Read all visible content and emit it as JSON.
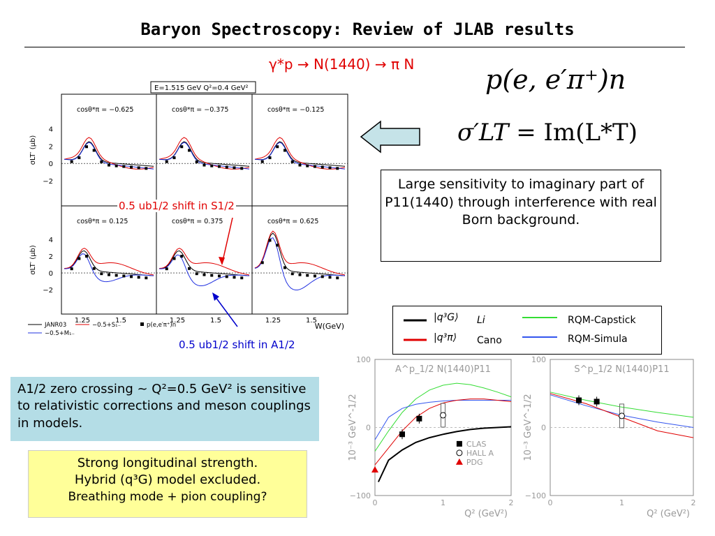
{
  "slide": {
    "title": "Baryon Spectroscopy: Review of JLAB results",
    "reaction": "γ*p → N(1440) → π N",
    "formula1": "p(e, e′π⁺)n",
    "formula2_lhs": "σ′LT",
    "formula2_rhs": "= Im(L*T)",
    "sensitivity_text": "Large sensitivity to imaginary part of P11(1440) through interference with real Born background.",
    "zero_crossing_text": "A1/2 zero crossing ~ Q²=0.5 GeV² is sensitive to relativistic corrections and meson couplings in models.",
    "strong_line1": "Strong longitudinal strength.",
    "strong_line2": "Hybrid (q³G) model excluded.",
    "strong_line3": "Breathing mode + pion coupling?",
    "shift_s": "0.5 ub1/2 shift in S1/2",
    "shift_a": "0.5 ub1/2 shift in A1/2"
  },
  "legend": {
    "li": "Li",
    "cano": "Cano",
    "q3g": "|q³G⟩",
    "q3pi": "|q³π⟩",
    "capstick": "RQM-Capstick",
    "simula": "RQM-Simula"
  },
  "left_plot": {
    "header": "E=1.515 GeV  Q²=0.4 GeV²",
    "ylabel": "σLT′ (μb)",
    "xlabel": "W(GeV)",
    "top_panels": [
      "cosθ*π = −0.625",
      "cosθ*π = −0.375",
      "cosθ*π = −0.125"
    ],
    "bottom_panels": [
      "cosθ*π = 0.125",
      "cosθ*π = 0.375",
      "cosθ*π = 0.625"
    ],
    "yticks": [
      "4",
      "2",
      "0",
      "−2"
    ],
    "xticks": [
      "1.25",
      "1.5"
    ],
    "legend_janr": "JANR03",
    "legend_born_s": "−0.5+S₁₋",
    "legend_born_m": "−0.5+M₁₋",
    "legend_data": "p(e,e′π⁺)n",
    "colors": {
      "black": "#000000",
      "red": "#e00000",
      "blue": "#2030e0"
    }
  },
  "chart_data": [
    {
      "type": "line",
      "title": "A^p_1/2  N(1440)P11",
      "xlabel": "Q² (GeV²)",
      "ylabel": "10⁻³ GeV^-1/2",
      "xlim": [
        0,
        2
      ],
      "ylim": [
        -100,
        100
      ],
      "xticks": [
        "0",
        "1",
        "2"
      ],
      "yticks": [
        "100",
        "0",
        "−100"
      ],
      "series": [
        {
          "name": "Li",
          "color": "#000000",
          "x": [
            0.05,
            0.2,
            0.4,
            0.6,
            0.8,
            1.0,
            1.2,
            1.4,
            1.6,
            1.8,
            2.0
          ],
          "y": [
            -80,
            -48,
            -33,
            -22,
            -15,
            -10,
            -6,
            -3,
            -1,
            0,
            1
          ]
        },
        {
          "name": "RQM-Capstick",
          "color": "#33dd33",
          "x": [
            0,
            0.2,
            0.4,
            0.6,
            0.8,
            1.0,
            1.2,
            1.4,
            1.6,
            1.8,
            2.0
          ],
          "y": [
            -35,
            -5,
            22,
            42,
            55,
            62,
            65,
            63,
            58,
            52,
            45
          ]
        },
        {
          "name": "RQM-Simula",
          "color": "#3355ee",
          "x": [
            0,
            0.2,
            0.4,
            0.6,
            0.8,
            1.0,
            1.2,
            1.4,
            1.6,
            1.8,
            2.0
          ],
          "y": [
            -18,
            15,
            28,
            34,
            37,
            39,
            40,
            40,
            40,
            40,
            40
          ]
        },
        {
          "name": "Cano",
          "color": "#e00000",
          "x": [
            0,
            0.2,
            0.4,
            0.6,
            0.8,
            1.0,
            1.2,
            1.4,
            1.6,
            1.8,
            2.0
          ],
          "y": [
            -55,
            -30,
            -5,
            15,
            28,
            36,
            40,
            42,
            42,
            40,
            38
          ]
        }
      ],
      "points": [
        {
          "name": "CLAS",
          "marker": "square",
          "x": [
            0.4,
            0.65
          ],
          "y": [
            -10,
            13
          ]
        },
        {
          "name": "HALL A",
          "marker": "circle",
          "x": [
            1.0
          ],
          "y": [
            18
          ]
        },
        {
          "name": "PDG",
          "marker": "triangle",
          "x": [
            0.0
          ],
          "y": [
            -62
          ]
        }
      ]
    },
    {
      "type": "line",
      "title": "S^p_1/2  N(1440)P11",
      "xlabel": "Q² (GeV²)",
      "ylabel": "10⁻³ GeV^-1/2",
      "xlim": [
        0,
        2
      ],
      "ylim": [
        -100,
        100
      ],
      "xticks": [
        "0",
        "1",
        "2"
      ],
      "yticks": [
        "100",
        "0",
        "−100"
      ],
      "series": [
        {
          "name": "RQM-Capstick",
          "color": "#33dd33",
          "x": [
            0,
            0.5,
            1.0,
            1.5,
            2.0
          ],
          "y": [
            52,
            40,
            30,
            22,
            15
          ]
        },
        {
          "name": "RQM-Simula",
          "color": "#3355ee",
          "x": [
            0,
            0.5,
            1.0,
            1.5,
            2.0
          ],
          "y": [
            48,
            32,
            18,
            8,
            0
          ]
        },
        {
          "name": "Cano",
          "color": "#e00000",
          "x": [
            0,
            0.5,
            1.0,
            1.5,
            2.0
          ],
          "y": [
            50,
            35,
            15,
            -5,
            -15
          ]
        }
      ],
      "points": [
        {
          "name": "CLAS",
          "marker": "square",
          "x": [
            0.4,
            0.65
          ],
          "y": [
            40,
            38
          ]
        },
        {
          "name": "HALL A",
          "marker": "circle",
          "x": [
            1.0
          ],
          "y": [
            17
          ]
        }
      ]
    }
  ]
}
